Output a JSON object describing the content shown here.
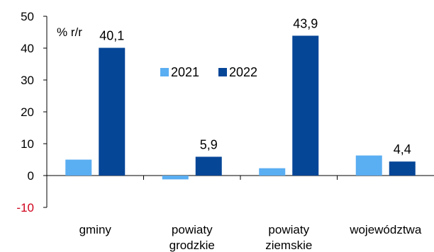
{
  "chart_data": {
    "type": "bar",
    "annotation": "% r/r",
    "categories": [
      [
        "gminy"
      ],
      [
        "powiaty",
        "grodzkie"
      ],
      [
        "powiaty",
        "ziemskie"
      ],
      [
        "województwa"
      ]
    ],
    "series": [
      {
        "name": "2021",
        "color": "#5aaef2",
        "values": [
          5.0,
          -1.2,
          2.3,
          6.3
        ],
        "labels": [
          "",
          "",
          "",
          ""
        ]
      },
      {
        "name": "2022",
        "color": "#064697",
        "values": [
          40.1,
          5.9,
          43.9,
          4.4
        ],
        "labels": [
          "40,1",
          "5,9",
          "43,9",
          "4,4"
        ]
      }
    ],
    "ylim": [
      -10,
      50
    ],
    "yticks": [
      -10,
      0,
      10,
      20,
      30,
      40,
      50
    ],
    "ytick_labels": [
      "-10",
      "0",
      "10",
      "20",
      "30",
      "40",
      "50"
    ],
    "legend_position": "center",
    "grid": false,
    "colors": {
      "axis": "#000000",
      "negative_tick": "#d0021b"
    }
  }
}
